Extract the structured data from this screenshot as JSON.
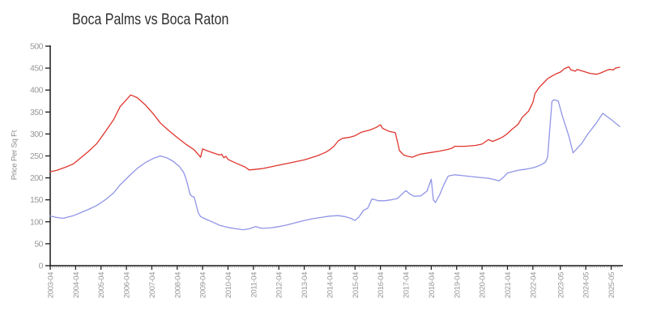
{
  "title": "Boca Palms vs Boca Raton",
  "colors": {
    "background": "#ffffff",
    "axis": "#1a1a1a",
    "tick_label": "#999999",
    "minor_tick": "#b5b5b5",
    "title_text": "#2e2e2e",
    "red_series": "#e0352e",
    "blue_series": "#9095e6"
  },
  "chart_data": {
    "type": "line",
    "title": "Boca Palms vs Boca Raton",
    "xlabel": "",
    "ylabel": "Price Per Sq Ft",
    "ylim": [
      0,
      500
    ],
    "grid": false,
    "legend_position": "none",
    "y_ticks": [
      0,
      50,
      100,
      150,
      200,
      250,
      300,
      350,
      400,
      450,
      500
    ],
    "y_tick_labels": [
      "0",
      "50",
      "100",
      "150",
      "200",
      "250",
      "300",
      "350",
      "400",
      "450",
      "500"
    ],
    "x_tick_labels": [
      "2003-04",
      "2004-04",
      "2005-04",
      "2006-04",
      "2007-04",
      "2008-04",
      "2009-04",
      "2010-04",
      "2011-04",
      "2012-04",
      "2013-04",
      "2014-04",
      "2015-04",
      "2016-04",
      "2017-04",
      "2018-04",
      "2019-04",
      "2020-04",
      "2021-04",
      "2022-04",
      "2023-05",
      "2024-05",
      "2025-05"
    ],
    "x_tick_months": [
      0,
      12,
      24,
      36,
      48,
      60,
      72,
      84,
      96,
      108,
      120,
      132,
      144,
      156,
      168,
      180,
      192,
      204,
      216,
      228,
      241,
      253,
      265
    ],
    "x_total_months": 269,
    "x_minor_tick_every_months": 1,
    "series": [
      {
        "name": "red-series",
        "color": "#e0352e",
        "points": [
          [
            0,
            214
          ],
          [
            3,
            217
          ],
          [
            7,
            224
          ],
          [
            11,
            232
          ],
          [
            14,
            244
          ],
          [
            18,
            260
          ],
          [
            22,
            278
          ],
          [
            26,
            305
          ],
          [
            30,
            333
          ],
          [
            33,
            362
          ],
          [
            36,
            378
          ],
          [
            38,
            389
          ],
          [
            41,
            383
          ],
          [
            45,
            366
          ],
          [
            49,
            344
          ],
          [
            52,
            325
          ],
          [
            56,
            308
          ],
          [
            60,
            292
          ],
          [
            64,
            277
          ],
          [
            68,
            264
          ],
          [
            70,
            253
          ],
          [
            71,
            247
          ],
          [
            72,
            266
          ],
          [
            74,
            262
          ],
          [
            77,
            257
          ],
          [
            80,
            252
          ],
          [
            81,
            254
          ],
          [
            82,
            246
          ],
          [
            83,
            249
          ],
          [
            84,
            242
          ],
          [
            88,
            233
          ],
          [
            92,
            225
          ],
          [
            94,
            218
          ],
          [
            96,
            219
          ],
          [
            100,
            221
          ],
          [
            104,
            225
          ],
          [
            108,
            229
          ],
          [
            113,
            234
          ],
          [
            120,
            241
          ],
          [
            126,
            250
          ],
          [
            130,
            258
          ],
          [
            132,
            264
          ],
          [
            134,
            272
          ],
          [
            136,
            284
          ],
          [
            138,
            290
          ],
          [
            141,
            292
          ],
          [
            144,
            296
          ],
          [
            147,
            304
          ],
          [
            151,
            309
          ],
          [
            154,
            315
          ],
          [
            156,
            321
          ],
          [
            157,
            313
          ],
          [
            160,
            306
          ],
          [
            163,
            303
          ],
          [
            164,
            283
          ],
          [
            165,
            262
          ],
          [
            167,
            252
          ],
          [
            169,
            249
          ],
          [
            171,
            247
          ],
          [
            173,
            251
          ],
          [
            175,
            254
          ],
          [
            180,
            258
          ],
          [
            184,
            261
          ],
          [
            188,
            265
          ],
          [
            190,
            268
          ],
          [
            191,
            272
          ],
          [
            196,
            272
          ],
          [
            201,
            274
          ],
          [
            204,
            277
          ],
          [
            207,
            287
          ],
          [
            209,
            283
          ],
          [
            212,
            289
          ],
          [
            214,
            294
          ],
          [
            216,
            301
          ],
          [
            218,
            310
          ],
          [
            221,
            322
          ],
          [
            223,
            338
          ],
          [
            226,
            352
          ],
          [
            228,
            372
          ],
          [
            229,
            392
          ],
          [
            231,
            406
          ],
          [
            233,
            416
          ],
          [
            235,
            426
          ],
          [
            237,
            432
          ],
          [
            239,
            437
          ],
          [
            241,
            441
          ],
          [
            243,
            449
          ],
          [
            245,
            453
          ],
          [
            246,
            446
          ],
          [
            248,
            443
          ],
          [
            249,
            447
          ],
          [
            251,
            444
          ],
          [
            253,
            441
          ],
          [
            255,
            438
          ],
          [
            258,
            436
          ],
          [
            260,
            439
          ],
          [
            262,
            443
          ],
          [
            264,
            447
          ],
          [
            266,
            446
          ],
          [
            267,
            450
          ],
          [
            269,
            452
          ]
        ]
      },
      {
        "name": "blue-series",
        "color": "#9095e6",
        "points": [
          [
            0,
            113
          ],
          [
            3,
            110
          ],
          [
            6,
            108
          ],
          [
            11,
            114
          ],
          [
            14,
            120
          ],
          [
            18,
            128
          ],
          [
            22,
            137
          ],
          [
            26,
            150
          ],
          [
            30,
            166
          ],
          [
            33,
            184
          ],
          [
            37,
            203
          ],
          [
            41,
            221
          ],
          [
            45,
            235
          ],
          [
            49,
            245
          ],
          [
            52,
            250
          ],
          [
            55,
            246
          ],
          [
            58,
            238
          ],
          [
            61,
            226
          ],
          [
            63,
            213
          ],
          [
            64,
            200
          ],
          [
            65,
            183
          ],
          [
            66,
            163
          ],
          [
            67,
            158
          ],
          [
            68,
            156
          ],
          [
            69,
            138
          ],
          [
            70,
            120
          ],
          [
            71,
            112
          ],
          [
            73,
            107
          ],
          [
            76,
            101
          ],
          [
            80,
            92
          ],
          [
            84,
            87
          ],
          [
            88,
            84
          ],
          [
            91,
            82
          ],
          [
            94,
            84
          ],
          [
            97,
            89
          ],
          [
            100,
            85
          ],
          [
            104,
            86
          ],
          [
            108,
            89
          ],
          [
            112,
            93
          ],
          [
            116,
            98
          ],
          [
            120,
            103
          ],
          [
            124,
            107
          ],
          [
            128,
            110
          ],
          [
            132,
            113
          ],
          [
            136,
            114
          ],
          [
            139,
            112
          ],
          [
            142,
            108
          ],
          [
            144,
            103
          ],
          [
            146,
            112
          ],
          [
            148,
            126
          ],
          [
            150,
            131
          ],
          [
            152,
            152
          ],
          [
            155,
            148
          ],
          [
            158,
            148
          ],
          [
            161,
            150
          ],
          [
            164,
            153
          ],
          [
            168,
            171
          ],
          [
            170,
            163
          ],
          [
            172,
            158
          ],
          [
            175,
            159
          ],
          [
            178,
            170
          ],
          [
            180,
            197
          ],
          [
            181,
            150
          ],
          [
            182,
            144
          ],
          [
            184,
            162
          ],
          [
            186,
            185
          ],
          [
            188,
            204
          ],
          [
            191,
            207
          ],
          [
            195,
            205
          ],
          [
            199,
            203
          ],
          [
            203,
            201
          ],
          [
            207,
            199
          ],
          [
            210,
            196
          ],
          [
            212,
            193
          ],
          [
            214,
            201
          ],
          [
            216,
            211
          ],
          [
            219,
            215
          ],
          [
            222,
            218
          ],
          [
            225,
            220
          ],
          [
            228,
            223
          ],
          [
            230,
            226
          ],
          [
            232,
            230
          ],
          [
            234,
            236
          ],
          [
            235,
            248
          ],
          [
            237,
            374
          ],
          [
            238,
            378
          ],
          [
            240,
            375
          ],
          [
            242,
            340
          ],
          [
            245,
            295
          ],
          [
            247,
            257
          ],
          [
            251,
            278
          ],
          [
            254,
            300
          ],
          [
            258,
            325
          ],
          [
            261,
            347
          ],
          [
            265,
            333
          ],
          [
            269,
            317
          ]
        ]
      }
    ]
  }
}
